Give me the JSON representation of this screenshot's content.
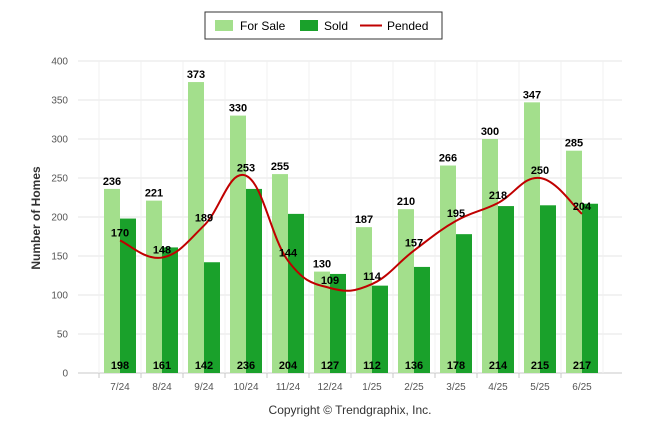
{
  "chart_data": {
    "type": "bar",
    "categories": [
      "7/24",
      "8/24",
      "9/24",
      "10/24",
      "11/24",
      "12/24",
      "1/25",
      "2/25",
      "3/25",
      "4/25",
      "5/25",
      "6/25"
    ],
    "series": [
      {
        "name": "For Sale",
        "type": "bar",
        "color": "#a3df8c",
        "values": [
          236,
          221,
          373,
          330,
          255,
          130,
          187,
          210,
          266,
          300,
          347,
          285
        ]
      },
      {
        "name": "Sold",
        "type": "bar",
        "color": "#1aa12b",
        "values": [
          198,
          161,
          142,
          236,
          204,
          127,
          112,
          136,
          178,
          214,
          215,
          217
        ]
      },
      {
        "name": "Pended",
        "type": "line",
        "color": "#c00000",
        "values": [
          170,
          148,
          189,
          253,
          144,
          109,
          114,
          157,
          195,
          218,
          250,
          204
        ]
      }
    ],
    "ylabel": "Number of Homes",
    "xlabel": "",
    "ylim": [
      0,
      400
    ],
    "yticks": [
      0,
      50,
      100,
      150,
      200,
      250,
      300,
      350,
      400
    ],
    "grid": true,
    "legend_position": "top-center",
    "footer": "Copyright © Trendgraphix, Inc."
  }
}
